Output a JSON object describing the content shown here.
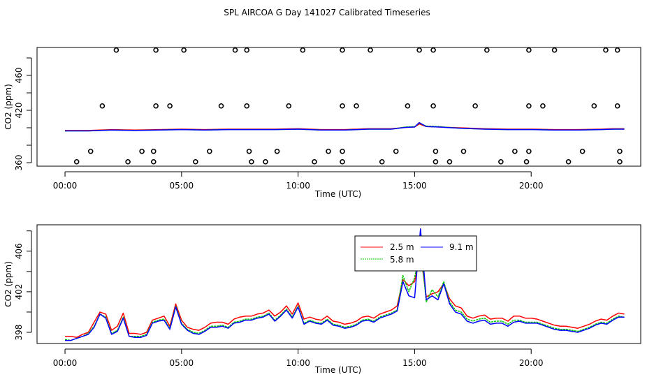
{
  "figure_title": "SPL AIRCOA G  Day 141027  Calibrated Timeseries",
  "colors": {
    "red": "#ff0000",
    "green": "#00cc00",
    "blue": "#0000ff",
    "axis": "#000000"
  },
  "chart_data": [
    {
      "type": "scatter",
      "title": "",
      "xlabel": "Time (UTC)",
      "ylabel": "CO2 (ppm)",
      "xlim": [
        -1.2,
        24.7
      ],
      "ylim": [
        356,
        492
      ],
      "x_ticks": [
        0,
        5,
        10,
        15,
        20
      ],
      "x_tick_labels": [
        "00:00",
        "05:00",
        "10:00",
        "15:00",
        "20:00"
      ],
      "y_ticks": [
        360,
        380,
        400,
        420,
        440,
        460,
        480
      ],
      "y_tick_labels": [
        "360",
        "",
        "",
        "420",
        "",
        "460",
        ""
      ],
      "flag_points": [
        [
          2.2,
          489
        ],
        [
          3.9,
          489
        ],
        [
          5.1,
          489
        ],
        [
          7.3,
          489
        ],
        [
          7.8,
          489
        ],
        [
          10.2,
          489
        ],
        [
          11.9,
          489
        ],
        [
          13.1,
          489
        ],
        [
          15.2,
          489
        ],
        [
          15.8,
          489
        ],
        [
          18.1,
          489
        ],
        [
          19.9,
          489
        ],
        [
          21.0,
          489
        ],
        [
          23.2,
          489
        ],
        [
          23.7,
          489
        ],
        [
          1.6,
          425
        ],
        [
          3.9,
          425
        ],
        [
          4.5,
          425
        ],
        [
          6.7,
          425
        ],
        [
          7.8,
          425
        ],
        [
          9.6,
          425
        ],
        [
          11.9,
          425
        ],
        [
          12.5,
          425
        ],
        [
          14.7,
          425
        ],
        [
          15.8,
          425
        ],
        [
          17.6,
          425
        ],
        [
          19.9,
          425
        ],
        [
          20.5,
          425
        ],
        [
          22.7,
          425
        ],
        [
          23.7,
          425
        ],
        [
          1.1,
          373
        ],
        [
          3.3,
          373
        ],
        [
          3.8,
          373
        ],
        [
          6.2,
          373
        ],
        [
          7.9,
          373
        ],
        [
          9.1,
          373
        ],
        [
          11.3,
          373
        ],
        [
          11.9,
          373
        ],
        [
          14.2,
          373
        ],
        [
          15.9,
          373
        ],
        [
          17.1,
          373
        ],
        [
          19.3,
          373
        ],
        [
          19.9,
          373
        ],
        [
          22.2,
          373
        ],
        [
          23.8,
          373
        ],
        [
          0.5,
          361
        ],
        [
          2.7,
          361
        ],
        [
          3.8,
          361
        ],
        [
          5.6,
          361
        ],
        [
          8.0,
          361
        ],
        [
          8.6,
          361
        ],
        [
          10.7,
          361
        ],
        [
          11.9,
          361
        ],
        [
          13.6,
          361
        ],
        [
          15.9,
          361
        ],
        [
          16.5,
          361
        ],
        [
          18.7,
          361
        ],
        [
          19.8,
          361
        ],
        [
          21.6,
          361
        ],
        [
          23.8,
          361
        ]
      ],
      "series": [
        {
          "name": "2.5 m",
          "color": "#ff0000",
          "x": [
            0.0,
            1.0,
            2.0,
            3.0,
            4.0,
            5.0,
            6.0,
            7.0,
            8.0,
            9.0,
            10.0,
            11.0,
            12.0,
            13.0,
            14.0,
            14.6,
            15.0,
            15.2,
            15.5,
            16.0,
            17.0,
            18.0,
            19.0,
            20.0,
            21.0,
            22.0,
            23.0,
            23.5,
            24.0
          ],
          "values": [
            396.9,
            396.9,
            397.9,
            397.4,
            397.9,
            398.4,
            397.9,
            398.4,
            398.4,
            398.4,
            398.9,
            397.9,
            397.9,
            398.9,
            398.9,
            400.4,
            400.9,
            404.4,
            401.4,
            400.9,
            399.9,
            398.9,
            398.4,
            398.4,
            397.9,
            397.9,
            398.4,
            398.9,
            398.9
          ]
        },
        {
          "name": "5.8 m",
          "color": "#00cc00",
          "x": [
            0.0,
            1.0,
            2.0,
            3.0,
            4.0,
            5.0,
            6.0,
            7.0,
            8.0,
            9.0,
            10.0,
            11.0,
            12.0,
            13.0,
            14.0,
            14.6,
            15.0,
            15.2,
            15.5,
            16.0,
            17.0,
            18.0,
            19.0,
            20.0,
            21.0,
            22.0,
            23.0,
            23.5,
            24.0
          ],
          "values": [
            396.4,
            396.4,
            397.4,
            396.9,
            397.4,
            397.9,
            397.4,
            397.9,
            397.9,
            397.9,
            398.4,
            397.4,
            397.4,
            398.4,
            398.4,
            400.9,
            401.4,
            405.4,
            401.9,
            401.4,
            399.4,
            398.4,
            397.9,
            397.9,
            397.4,
            397.4,
            397.9,
            398.4,
            398.4
          ]
        },
        {
          "name": "9.1 m",
          "color": "#0000ff",
          "x": [
            0.0,
            1.0,
            2.0,
            3.0,
            4.0,
            5.0,
            6.0,
            7.0,
            8.0,
            9.0,
            10.0,
            11.0,
            12.0,
            13.0,
            14.0,
            14.6,
            15.0,
            15.2,
            15.5,
            16.0,
            17.0,
            18.0,
            19.0,
            20.0,
            21.0,
            22.0,
            23.0,
            23.5,
            24.0
          ],
          "values": [
            396.4,
            396.4,
            397.4,
            396.9,
            397.4,
            397.9,
            397.4,
            397.9,
            397.9,
            397.9,
            398.4,
            397.4,
            397.4,
            398.4,
            398.4,
            400.4,
            400.9,
            405.9,
            401.4,
            400.9,
            399.4,
            398.4,
            397.9,
            397.9,
            397.4,
            397.4,
            397.9,
            398.4,
            398.4
          ]
        }
      ]
    },
    {
      "type": "line",
      "title": "",
      "xlabel": "Time (UTC)",
      "ylabel": "CO2 (ppm)",
      "xlim": [
        -1.2,
        24.7
      ],
      "ylim": [
        396.9,
        408.6
      ],
      "x_ticks": [
        0,
        5,
        10,
        15,
        20
      ],
      "x_tick_labels": [
        "00:00",
        "05:00",
        "10:00",
        "15:00",
        "20:00"
      ],
      "y_ticks": [
        398,
        400,
        402,
        404,
        406,
        408
      ],
      "y_tick_labels": [
        "398",
        "",
        "402",
        "",
        "406",
        ""
      ],
      "legend": {
        "position": "top-center",
        "entries": [
          "2.5 m",
          "5.8 m",
          "9.1 m"
        ]
      },
      "x": [
        0.0,
        0.25,
        0.5,
        0.75,
        1.0,
        1.25,
        1.5,
        1.75,
        2.0,
        2.25,
        2.5,
        2.75,
        3.0,
        3.25,
        3.5,
        3.75,
        4.0,
        4.25,
        4.5,
        4.75,
        5.0,
        5.25,
        5.5,
        5.75,
        6.0,
        6.25,
        6.5,
        6.75,
        7.0,
        7.25,
        7.5,
        7.75,
        8.0,
        8.25,
        8.5,
        8.75,
        9.0,
        9.25,
        9.5,
        9.75,
        10.0,
        10.25,
        10.5,
        10.75,
        11.0,
        11.25,
        11.5,
        11.75,
        12.0,
        12.25,
        12.5,
        12.75,
        13.0,
        13.25,
        13.5,
        13.75,
        14.0,
        14.25,
        14.5,
        14.75,
        15.0,
        15.25,
        15.5,
        15.75,
        16.0,
        16.25,
        16.5,
        16.75,
        17.0,
        17.25,
        17.5,
        17.75,
        18.0,
        18.25,
        18.5,
        18.75,
        19.0,
        19.25,
        19.5,
        19.75,
        20.0,
        20.25,
        20.5,
        20.75,
        21.0,
        21.25,
        21.5,
        21.75,
        22.0,
        22.25,
        22.5,
        22.75,
        23.0,
        23.25,
        23.5,
        23.75,
        24.0
      ],
      "series": [
        {
          "name": "2.5 m",
          "color": "#ff0000",
          "values": [
            397.6,
            397.6,
            397.5,
            397.8,
            398.0,
            399.0,
            400.0,
            399.8,
            398.2,
            398.6,
            399.9,
            397.9,
            397.9,
            397.8,
            398.0,
            399.2,
            399.4,
            399.6,
            398.6,
            400.8,
            399.2,
            398.5,
            398.3,
            398.2,
            398.5,
            398.9,
            399.0,
            399.0,
            398.8,
            399.3,
            399.5,
            399.6,
            399.6,
            399.8,
            399.9,
            400.2,
            399.6,
            400.0,
            400.6,
            399.8,
            400.9,
            399.3,
            399.5,
            399.3,
            399.2,
            399.6,
            399.1,
            399.0,
            398.8,
            398.9,
            399.1,
            399.5,
            399.6,
            399.4,
            399.8,
            400.0,
            400.2,
            400.6,
            403.2,
            402.6,
            403.0,
            405.8,
            401.5,
            401.8,
            402.0,
            402.8,
            401.3,
            400.6,
            400.4,
            399.6,
            399.4,
            399.6,
            399.7,
            399.3,
            399.4,
            399.4,
            399.1,
            399.6,
            399.6,
            399.4,
            399.4,
            399.3,
            399.1,
            398.9,
            398.7,
            398.6,
            398.6,
            398.5,
            398.4,
            398.6,
            398.8,
            399.1,
            399.3,
            399.2,
            399.6,
            399.9,
            399.8
          ]
        },
        {
          "name": "5.8 m",
          "color": "#00cc00",
          "values": [
            397.3,
            397.2,
            397.4,
            397.6,
            397.9,
            398.6,
            399.8,
            399.5,
            397.9,
            398.2,
            399.5,
            397.6,
            397.6,
            397.6,
            397.8,
            399.0,
            399.2,
            399.3,
            398.4,
            400.6,
            398.9,
            398.3,
            398.0,
            397.9,
            398.2,
            398.6,
            398.6,
            398.7,
            398.5,
            399.0,
            399.1,
            399.3,
            399.3,
            399.5,
            399.6,
            399.9,
            399.2,
            399.7,
            400.3,
            399.5,
            400.6,
            398.9,
            399.2,
            399.0,
            398.9,
            399.3,
            398.8,
            398.7,
            398.5,
            398.6,
            398.8,
            399.2,
            399.3,
            399.1,
            399.5,
            399.7,
            399.9,
            400.2,
            403.6,
            402.0,
            403.4,
            406.6,
            401.0,
            402.2,
            401.5,
            403.0,
            401.0,
            400.2,
            400.0,
            399.3,
            399.1,
            399.3,
            399.4,
            399.0,
            399.1,
            399.1,
            398.8,
            399.2,
            399.2,
            399.0,
            399.0,
            399.0,
            398.8,
            398.6,
            398.4,
            398.3,
            398.3,
            398.2,
            398.1,
            398.3,
            398.5,
            398.8,
            399.0,
            398.9,
            399.3,
            399.6,
            399.5
          ]
        },
        {
          "name": "9.1 m",
          "color": "#0000ff",
          "values": [
            397.2,
            397.2,
            397.4,
            397.6,
            397.8,
            398.5,
            399.8,
            399.4,
            397.8,
            398.1,
            399.4,
            397.6,
            397.5,
            397.5,
            397.7,
            398.9,
            399.1,
            399.2,
            398.3,
            400.5,
            398.8,
            398.2,
            397.9,
            397.8,
            398.1,
            398.5,
            398.5,
            398.6,
            398.4,
            398.9,
            399.0,
            399.2,
            399.2,
            399.4,
            399.5,
            399.8,
            399.1,
            399.6,
            400.2,
            399.4,
            400.5,
            398.8,
            399.1,
            398.9,
            398.8,
            399.2,
            398.7,
            398.6,
            398.4,
            398.5,
            398.7,
            399.1,
            399.2,
            399.0,
            399.4,
            399.6,
            399.8,
            400.1,
            403.0,
            401.6,
            401.4,
            408.2,
            401.2,
            401.6,
            401.2,
            402.8,
            400.8,
            400.0,
            399.8,
            399.1,
            398.9,
            399.1,
            399.2,
            398.8,
            398.9,
            398.9,
            398.6,
            399.0,
            399.1,
            398.9,
            398.9,
            398.9,
            398.7,
            398.5,
            398.3,
            398.2,
            398.2,
            398.1,
            398.0,
            398.2,
            398.4,
            398.7,
            398.9,
            398.8,
            399.2,
            399.5,
            399.5
          ]
        }
      ]
    }
  ]
}
